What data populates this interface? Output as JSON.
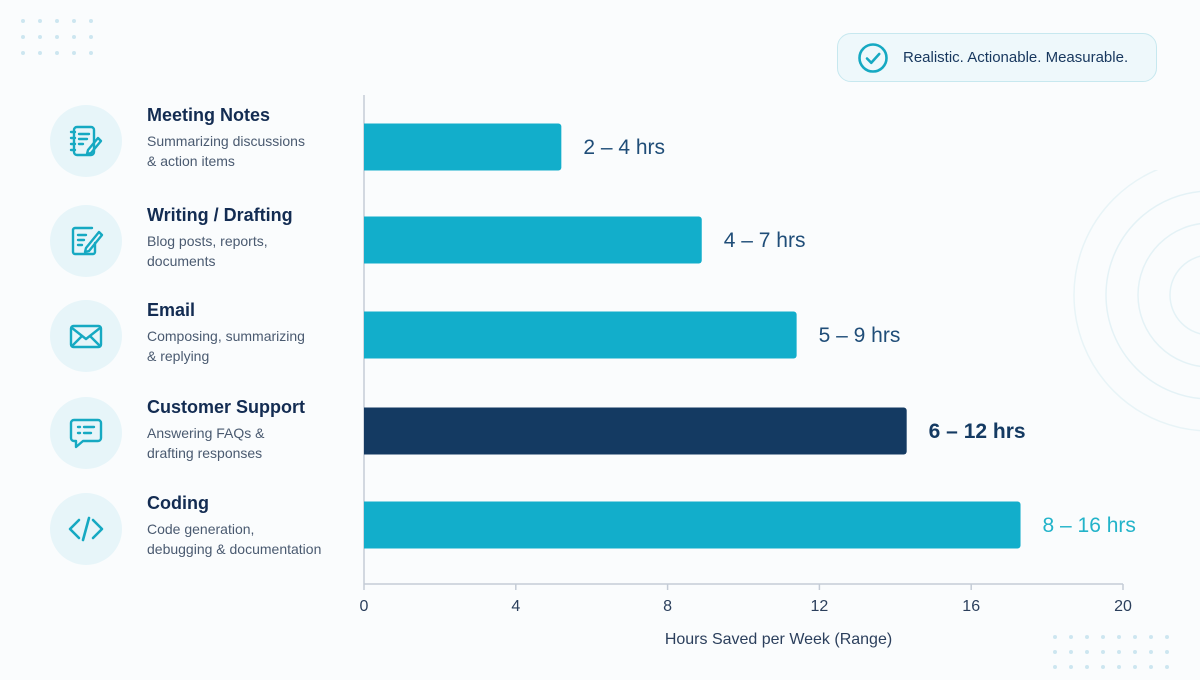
{
  "badge": {
    "text": "Realistic. Actionable. Measurable.",
    "icon": "check-circle-icon"
  },
  "categories": [
    {
      "title": "Meeting Notes",
      "desc_line1": "Summarizing discussions",
      "desc_line2": "& action items",
      "icon": "notebook-pen-icon"
    },
    {
      "title": "Writing / Drafting",
      "desc_line1": "Blog posts, reports,",
      "desc_line2": "documents",
      "icon": "edit-document-icon"
    },
    {
      "title": "Email",
      "desc_line1": "Composing, summarizing",
      "desc_line2": "& replying",
      "icon": "envelope-icon"
    },
    {
      "title": "Customer Support",
      "desc_line1": "Answering FAQs &",
      "desc_line2": "drafting responses",
      "icon": "chat-bubble-icon"
    },
    {
      "title": "Coding",
      "desc_line1": "Code generation,",
      "desc_line2": "debugging & documentation",
      "icon": "code-brackets-icon"
    }
  ],
  "colors": {
    "teal": "#12aecb",
    "navy": "#143a62",
    "label_dark": "#1f4d78",
    "label_teal": "#22b3c9"
  },
  "chart_data": {
    "type": "bar",
    "orientation": "horizontal",
    "categories": [
      "Meeting Notes",
      "Writing / Drafting",
      "Email",
      "Customer Support",
      "Coding"
    ],
    "values": [
      5.2,
      8.9,
      11.4,
      14.3,
      17.3
    ],
    "ranges": [
      [
        2,
        4
      ],
      [
        4,
        7
      ],
      [
        5,
        9
      ],
      [
        6,
        12
      ],
      [
        8,
        16
      ]
    ],
    "data_labels": [
      "2 – 4 hrs",
      "4 – 7 hrs",
      "5 – 9 hrs",
      "6 – 12 hrs",
      "8 – 16 hrs"
    ],
    "highlighted_index": 3,
    "xlabel": "Hours Saved per Week (Range)",
    "xlim": [
      0,
      20
    ],
    "xticks": [
      0,
      4,
      8,
      12,
      16,
      20
    ],
    "grid": false
  }
}
